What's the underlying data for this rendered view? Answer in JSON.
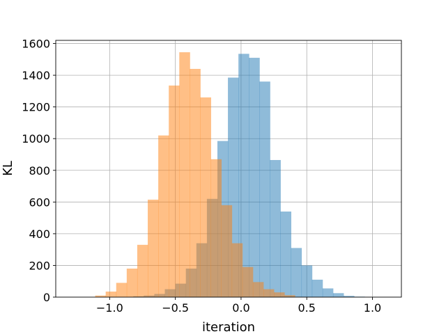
{
  "chart_data": {
    "type": "bar",
    "title": "",
    "xlabel": "iteration",
    "ylabel": "KL",
    "xlim": [
      -1.41,
      1.22
    ],
    "ylim": [
      0,
      1620
    ],
    "grid": true,
    "xticks": [
      -1.0,
      -0.5,
      0.0,
      0.5,
      1.0
    ],
    "xtick_labels": [
      "−1.0",
      "−0.5",
      "0.0",
      "0.5",
      "1.0"
    ],
    "yticks": [
      0,
      200,
      400,
      600,
      800,
      1000,
      1200,
      1400,
      1600
    ],
    "ytick_labels": [
      "0",
      "200",
      "400",
      "600",
      "800",
      "1000",
      "1200",
      "1400",
      "1600"
    ],
    "series": [
      {
        "color": "#1f77b4",
        "opacity": 0.5,
        "bins": [
          [
            -0.82,
            -0.74,
            5
          ],
          [
            -0.74,
            -0.66,
            10
          ],
          [
            -0.66,
            -0.58,
            20
          ],
          [
            -0.58,
            -0.5,
            50
          ],
          [
            -0.5,
            -0.42,
            85
          ],
          [
            -0.42,
            -0.34,
            180
          ],
          [
            -0.34,
            -0.26,
            340
          ],
          [
            -0.26,
            -0.18,
            620
          ],
          [
            -0.18,
            -0.1,
            985
          ],
          [
            -0.1,
            -0.02,
            1385
          ],
          [
            -0.02,
            0.06,
            1535
          ],
          [
            0.06,
            0.14,
            1510
          ],
          [
            0.14,
            0.22,
            1360
          ],
          [
            0.22,
            0.3,
            865
          ],
          [
            0.3,
            0.38,
            540
          ],
          [
            0.38,
            0.46,
            310
          ],
          [
            0.46,
            0.54,
            200
          ],
          [
            0.54,
            0.62,
            110
          ],
          [
            0.62,
            0.7,
            55
          ],
          [
            0.7,
            0.78,
            25
          ],
          [
            0.78,
            0.86,
            8
          ],
          [
            0.86,
            0.94,
            3
          ]
        ]
      },
      {
        "color": "#ff7f0e",
        "opacity": 0.5,
        "bins": [
          [
            -1.11,
            -1.03,
            10
          ],
          [
            -1.03,
            -0.95,
            35
          ],
          [
            -0.95,
            -0.87,
            90
          ],
          [
            -0.87,
            -0.79,
            180
          ],
          [
            -0.79,
            -0.71,
            330
          ],
          [
            -0.71,
            -0.63,
            615
          ],
          [
            -0.63,
            -0.55,
            1020
          ],
          [
            -0.55,
            -0.47,
            1335
          ],
          [
            -0.47,
            -0.39,
            1545
          ],
          [
            -0.39,
            -0.31,
            1440
          ],
          [
            -0.31,
            -0.23,
            1260
          ],
          [
            -0.23,
            -0.15,
            870
          ],
          [
            -0.15,
            -0.07,
            580
          ],
          [
            -0.07,
            0.01,
            340
          ],
          [
            0.01,
            0.09,
            190
          ],
          [
            0.09,
            0.17,
            95
          ],
          [
            0.17,
            0.25,
            50
          ],
          [
            0.25,
            0.33,
            30
          ],
          [
            0.33,
            0.41,
            12
          ]
        ]
      }
    ]
  }
}
